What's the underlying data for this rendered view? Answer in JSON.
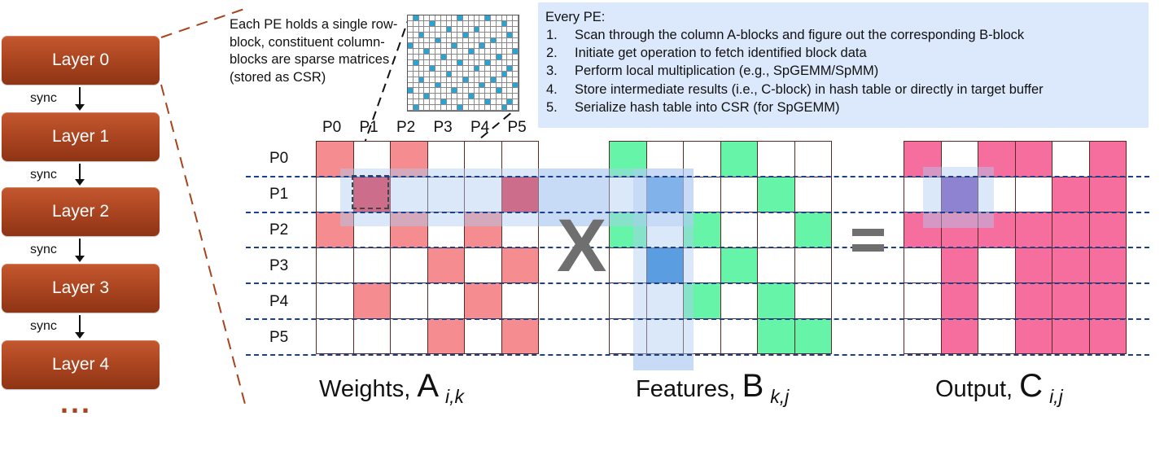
{
  "layers": [
    "Layer 0",
    "Layer 1",
    "Layer 2",
    "Layer 3",
    "Layer 4"
  ],
  "sync_label": "sync",
  "ellipsis": "...",
  "annotation": "Each PE holds a single row-block, constituent column-blocks are sparse matrices (stored as CSR)",
  "steps": {
    "title": "Every PE:",
    "items": [
      "Scan through the column A-blocks and figure out the corresponding B-block",
      "Initiate get operation to fetch identified block data",
      "Perform local multiplication (e.g., SpGEMM/SpMM)",
      "Store intermediate results (i.e., C-block) in hash table or directly in target buffer",
      "Serialize hash table into CSR (for SpGEMM)"
    ]
  },
  "pe_labels": [
    "P0",
    "P1",
    "P2",
    "P3",
    "P4",
    "P5"
  ],
  "operators": {
    "multiply": "X",
    "equals": "="
  },
  "colors": {
    "pink": "#f58c8f",
    "red": "#e31f37",
    "green": "#66f5a8",
    "blue": "#1777d2",
    "magenta": "#f56e9e",
    "purple": "#7247b5",
    "layer": "#a8431f",
    "dashed": "#1a3f8f",
    "highlight": "#dce8fb",
    "sparse_dot": "#2ba2d4"
  },
  "matrices": [
    {
      "id": "A",
      "caption_name": "Weights, ",
      "caption_symbol": "A",
      "caption_sub": "i,k",
      "cells": [
        [
          "pink",
          "",
          "pink",
          "",
          "",
          ""
        ],
        [
          "",
          "red",
          "",
          "",
          "",
          "red"
        ],
        [
          "pink",
          "",
          "pink",
          "",
          "pink",
          ""
        ],
        [
          "",
          "",
          "",
          "pink",
          "",
          "pink"
        ],
        [
          "",
          "pink",
          "",
          "",
          "pink",
          ""
        ],
        [
          "",
          "",
          "",
          "pink",
          "",
          "pink"
        ]
      ]
    },
    {
      "id": "B",
      "caption_name": "Features, ",
      "caption_symbol": "B",
      "caption_sub": "k,j",
      "cells": [
        [
          "green",
          "",
          "",
          "green",
          "",
          ""
        ],
        [
          "",
          "blue",
          "",
          "",
          "green",
          ""
        ],
        [
          "green",
          "",
          "green",
          "",
          "",
          "green"
        ],
        [
          "",
          "blue",
          "",
          "green",
          "",
          ""
        ],
        [
          "",
          "",
          "green",
          "",
          "green",
          ""
        ],
        [
          "",
          "",
          "",
          "",
          "green",
          "green"
        ]
      ]
    },
    {
      "id": "C",
      "caption_name": "Output, ",
      "caption_symbol": "C",
      "caption_sub": "i,j",
      "cells": [
        [
          "magenta",
          "",
          "magenta",
          "magenta",
          "",
          "magenta"
        ],
        [
          "",
          "purple",
          "",
          "",
          "magenta",
          "magenta"
        ],
        [
          "magenta",
          "magenta",
          "magenta",
          "magenta",
          "magenta",
          "magenta"
        ],
        [
          "",
          "magenta",
          "",
          "magenta",
          "magenta",
          "magenta"
        ],
        [
          "",
          "magenta",
          "",
          "magenta",
          "magenta",
          "magenta"
        ],
        [
          "",
          "magenta",
          "",
          "magenta",
          "magenta",
          "magenta"
        ]
      ]
    }
  ],
  "sparse_block": {
    "rows": 17,
    "cols": 20,
    "nonzeros": [
      [
        0,
        1
      ],
      [
        0,
        9
      ],
      [
        0,
        14
      ],
      [
        1,
        4
      ],
      [
        1,
        17
      ],
      [
        2,
        7
      ],
      [
        2,
        12
      ],
      [
        3,
        2
      ],
      [
        3,
        10
      ],
      [
        3,
        18
      ],
      [
        4,
        5
      ],
      [
        4,
        15
      ],
      [
        5,
        0
      ],
      [
        5,
        8
      ],
      [
        5,
        13
      ],
      [
        6,
        3
      ],
      [
        6,
        11
      ],
      [
        6,
        19
      ],
      [
        7,
        6
      ],
      [
        7,
        16
      ],
      [
        8,
        1
      ],
      [
        8,
        9
      ],
      [
        8,
        14
      ],
      [
        9,
        4
      ],
      [
        9,
        12
      ],
      [
        9,
        18
      ],
      [
        10,
        7
      ],
      [
        10,
        17
      ],
      [
        11,
        2
      ],
      [
        11,
        10
      ],
      [
        11,
        15
      ],
      [
        12,
        5
      ],
      [
        12,
        13
      ],
      [
        12,
        19
      ],
      [
        13,
        0
      ],
      [
        13,
        8
      ],
      [
        13,
        16
      ],
      [
        14,
        3
      ],
      [
        14,
        11
      ],
      [
        15,
        6
      ],
      [
        15,
        14
      ],
      [
        15,
        18
      ],
      [
        16,
        1
      ],
      [
        16,
        9
      ],
      [
        16,
        17
      ]
    ]
  }
}
